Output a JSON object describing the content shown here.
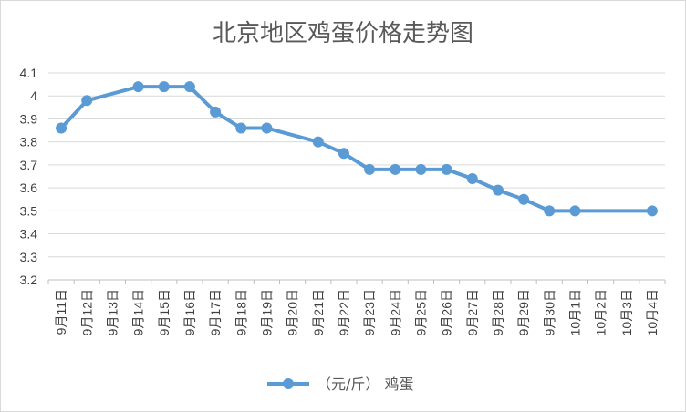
{
  "chart_data": {
    "type": "line",
    "title": "北京地区鸡蛋价格走势图",
    "xlabel": "",
    "ylabel": "",
    "categories": [
      "9月11日",
      "9月12日",
      "9月13日",
      "9月14日",
      "9月15日",
      "9月16日",
      "9月17日",
      "9月18日",
      "9月19日",
      "9月20日",
      "9月21日",
      "9月22日",
      "9月23日",
      "9月24日",
      "9月25日",
      "9月26日",
      "9月27日",
      "9月28日",
      "9月29日",
      "9月30日",
      "10月1日",
      "10月2日",
      "10月3日",
      "10月4日"
    ],
    "y_ticks": [
      "3.2",
      "3.3",
      "3.4",
      "3.5",
      "3.6",
      "3.7",
      "3.8",
      "3.9",
      "4",
      "4.1"
    ],
    "ylim": [
      3.2,
      4.1
    ],
    "grid": true,
    "legend_position": "bottom",
    "series": [
      {
        "name": "（元/斤） 鸡蛋",
        "color": "#5b9bd5",
        "points": [
          {
            "x": "9月11日",
            "y": 3.86
          },
          {
            "x": "9月12日",
            "y": 3.98
          },
          {
            "x": "9月14日",
            "y": 4.04
          },
          {
            "x": "9月15日",
            "y": 4.04
          },
          {
            "x": "9月16日",
            "y": 4.04
          },
          {
            "x": "9月17日",
            "y": 3.93
          },
          {
            "x": "9月18日",
            "y": 3.86
          },
          {
            "x": "9月19日",
            "y": 3.86
          },
          {
            "x": "9月21日",
            "y": 3.8
          },
          {
            "x": "9月22日",
            "y": 3.75
          },
          {
            "x": "9月23日",
            "y": 3.68
          },
          {
            "x": "9月24日",
            "y": 3.68
          },
          {
            "x": "9月25日",
            "y": 3.68
          },
          {
            "x": "9月26日",
            "y": 3.68
          },
          {
            "x": "9月27日",
            "y": 3.64
          },
          {
            "x": "9月28日",
            "y": 3.59
          },
          {
            "x": "9月29日",
            "y": 3.55
          },
          {
            "x": "9月30日",
            "y": 3.5
          },
          {
            "x": "10月1日",
            "y": 3.5
          },
          {
            "x": "10月4日",
            "y": 3.5
          }
        ]
      }
    ]
  }
}
